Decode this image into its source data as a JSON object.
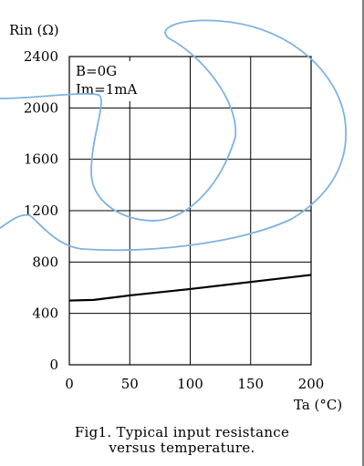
{
  "chart_data": {
    "type": "line",
    "ylabel": "Rin (Ω)",
    "xlabel": "Ta (°C)",
    "xlim": [
      0,
      200
    ],
    "ylim": [
      0,
      2400
    ],
    "x_ticks": [
      0,
      50,
      100,
      150,
      200
    ],
    "y_ticks": [
      0,
      400,
      800,
      1200,
      1600,
      2000,
      2400
    ],
    "grid": true,
    "conditions": [
      "B=0G",
      "Im=1mA"
    ],
    "series": [
      {
        "x": [
          0,
          20,
          50,
          100,
          150,
          200
        ],
        "y": [
          500,
          505,
          540,
          590,
          645,
          700
        ]
      }
    ],
    "caption_line1": "Fig1. Typical input resistance",
    "caption_line2": "versus temperature."
  },
  "colors": {
    "line": "#000000",
    "grid": "#000000",
    "scribble": "#7fb2e0"
  }
}
